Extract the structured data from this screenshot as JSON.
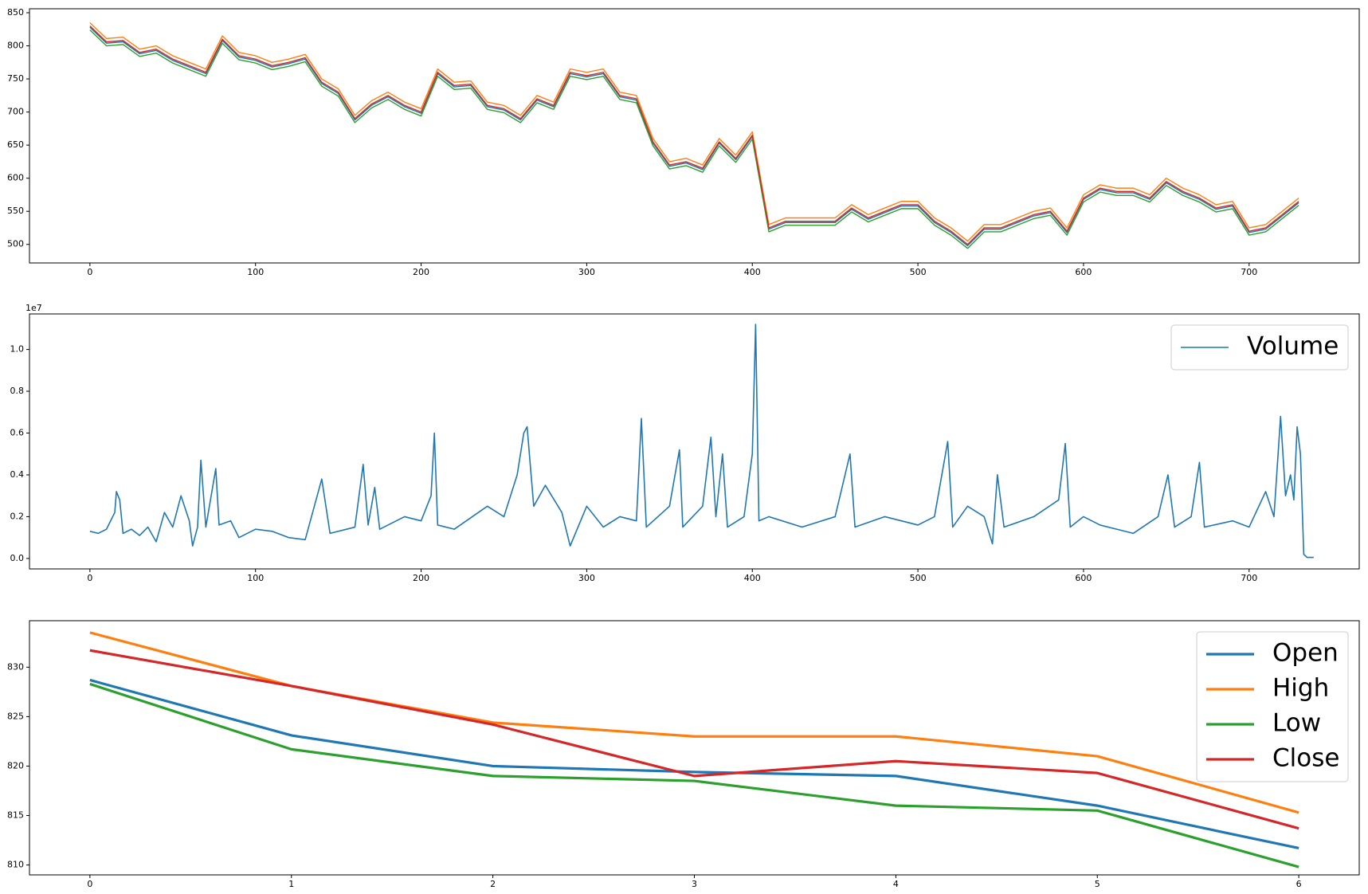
{
  "chart_data": [
    {
      "type": "line",
      "xlim": [
        -36.5,
        766.5
      ],
      "xticks": [
        0,
        100,
        200,
        300,
        400,
        500,
        600,
        700
      ],
      "ylim": [
        472,
        856
      ],
      "yticks": [
        500,
        550,
        600,
        650,
        700,
        750,
        800,
        850
      ],
      "x": [
        0,
        10,
        20,
        30,
        40,
        50,
        60,
        70,
        80,
        90,
        100,
        110,
        120,
        130,
        140,
        150,
        160,
        170,
        180,
        190,
        200,
        210,
        220,
        230,
        240,
        250,
        260,
        270,
        280,
        290,
        300,
        310,
        320,
        330,
        340,
        350,
        360,
        370,
        380,
        390,
        400,
        410,
        420,
        430,
        440,
        450,
        460,
        470,
        480,
        490,
        500,
        510,
        520,
        530,
        540,
        550,
        560,
        570,
        580,
        590,
        600,
        610,
        620,
        630,
        640,
        650,
        660,
        670,
        680,
        690,
        700,
        710,
        720,
        730
      ],
      "series": [
        {
          "color": "#1f77b4",
          "values": [
            828,
            804,
            806,
            788,
            793,
            778,
            768,
            758,
            808,
            783,
            778,
            768,
            773,
            780,
            743,
            728,
            688,
            710,
            723,
            708,
            698,
            758,
            738,
            740,
            708,
            703,
            688,
            718,
            708,
            758,
            753,
            758,
            723,
            718,
            653,
            618,
            623,
            613,
            653,
            628,
            663,
            523,
            533,
            533,
            533,
            533,
            553,
            538,
            548,
            558,
            558,
            533,
            518,
            498,
            523,
            523,
            533,
            543,
            548,
            518,
            568,
            583,
            578,
            578,
            568,
            593,
            578,
            568,
            553,
            558,
            518,
            523,
            543,
            563
          ]
        },
        {
          "color": "#ff7f0e",
          "values": [
            835,
            811,
            813,
            795,
            800,
            785,
            775,
            765,
            815,
            790,
            785,
            775,
            780,
            787,
            750,
            735,
            695,
            717,
            730,
            715,
            705,
            765,
            745,
            747,
            715,
            710,
            695,
            725,
            715,
            765,
            760,
            765,
            730,
            725,
            660,
            625,
            630,
            620,
            660,
            635,
            670,
            530,
            540,
            540,
            540,
            540,
            560,
            545,
            555,
            565,
            565,
            540,
            525,
            505,
            530,
            530,
            540,
            550,
            555,
            525,
            575,
            590,
            585,
            585,
            575,
            600,
            585,
            575,
            560,
            565,
            525,
            530,
            550,
            570
          ]
        },
        {
          "color": "#2ca02c",
          "values": [
            824,
            800,
            802,
            784,
            789,
            774,
            764,
            754,
            804,
            779,
            774,
            764,
            769,
            776,
            739,
            724,
            684,
            706,
            719,
            704,
            694,
            754,
            734,
            736,
            704,
            699,
            684,
            714,
            704,
            754,
            749,
            754,
            719,
            714,
            649,
            614,
            619,
            609,
            649,
            624,
            659,
            519,
            529,
            529,
            529,
            529,
            549,
            534,
            544,
            554,
            554,
            529,
            514,
            494,
            519,
            519,
            529,
            539,
            544,
            514,
            564,
            579,
            574,
            574,
            564,
            589,
            574,
            564,
            549,
            554,
            514,
            519,
            539,
            559
          ]
        },
        {
          "color": "#d62728",
          "values": [
            830,
            806,
            808,
            790,
            795,
            780,
            770,
            760,
            810,
            785,
            780,
            770,
            775,
            782,
            745,
            730,
            690,
            712,
            725,
            710,
            700,
            760,
            740,
            742,
            710,
            705,
            690,
            720,
            710,
            760,
            755,
            760,
            725,
            720,
            655,
            620,
            625,
            615,
            655,
            630,
            665,
            525,
            535,
            535,
            535,
            535,
            555,
            540,
            550,
            560,
            560,
            535,
            520,
            500,
            525,
            525,
            535,
            545,
            550,
            520,
            570,
            585,
            580,
            580,
            570,
            595,
            580,
            570,
            555,
            560,
            520,
            525,
            545,
            565
          ]
        }
      ]
    },
    {
      "type": "line",
      "xlim": [
        -36.5,
        766.5
      ],
      "xticks": [
        0,
        100,
        200,
        300,
        400,
        500,
        600,
        700
      ],
      "ylim": [
        -500000,
        11700000
      ],
      "yticks": [
        {
          "value": 0,
          "label": "0.0"
        },
        {
          "value": 2000000,
          "label": "0.2"
        },
        {
          "value": 4000000,
          "label": "0.4"
        },
        {
          "value": 6000000,
          "label": "0.6"
        },
        {
          "value": 8000000,
          "label": "0.8"
        },
        {
          "value": 10000000,
          "label": "1.0"
        }
      ],
      "y_offset_label": "1e7",
      "legend": "upper right",
      "x": [
        0,
        5,
        10,
        15,
        16,
        18,
        20,
        25,
        30,
        35,
        40,
        45,
        50,
        55,
        60,
        62,
        65,
        67,
        70,
        76,
        78,
        85,
        90,
        100,
        110,
        120,
        130,
        140,
        145,
        160,
        165,
        168,
        172,
        175,
        190,
        200,
        206,
        208,
        210,
        220,
        240,
        250,
        258,
        262,
        264,
        268,
        275,
        285,
        290,
        300,
        310,
        320,
        330,
        333,
        336,
        350,
        356,
        358,
        370,
        375,
        378,
        382,
        385,
        395,
        400,
        402,
        404,
        410,
        430,
        450,
        459,
        462,
        480,
        500,
        510,
        518,
        521,
        530,
        540,
        545,
        548,
        552,
        570,
        585,
        589,
        592,
        600,
        610,
        620,
        630,
        645,
        651,
        655,
        665,
        670,
        673,
        690,
        700,
        710,
        715,
        719,
        722,
        725,
        727,
        729,
        731,
        733,
        735,
        739
      ],
      "series": [
        {
          "name": "Volume",
          "color": "#1f77b4",
          "values": [
            1300000,
            1200000,
            1400000,
            2200000,
            3200000,
            2800000,
            1200000,
            1400000,
            1100000,
            1500000,
            800000,
            2200000,
            1500000,
            3000000,
            1800000,
            600000,
            1500000,
            4700000,
            1500000,
            4300000,
            1600000,
            1800000,
            1000000,
            1400000,
            1300000,
            1000000,
            900000,
            3800000,
            1200000,
            1500000,
            4500000,
            1600000,
            3400000,
            1400000,
            2000000,
            1800000,
            3000000,
            6000000,
            1600000,
            1400000,
            2500000,
            2000000,
            4000000,
            6000000,
            6300000,
            2500000,
            3500000,
            2200000,
            600000,
            2500000,
            1500000,
            2000000,
            1800000,
            6700000,
            1500000,
            2500000,
            5200000,
            1500000,
            2500000,
            5800000,
            2000000,
            5000000,
            1500000,
            2000000,
            5000000,
            11200000,
            1800000,
            2000000,
            1500000,
            2000000,
            5000000,
            1500000,
            2000000,
            1600000,
            2000000,
            5600000,
            1500000,
            2500000,
            2000000,
            700000,
            4000000,
            1500000,
            2000000,
            2800000,
            5500000,
            1500000,
            2000000,
            1600000,
            1400000,
            1200000,
            2000000,
            4000000,
            1500000,
            2000000,
            4600000,
            1500000,
            1800000,
            1500000,
            3200000,
            2000000,
            6800000,
            3000000,
            4000000,
            2800000,
            6300000,
            5000000,
            200000,
            50000,
            50000
          ]
        }
      ]
    },
    {
      "type": "line",
      "xlim": [
        -0.3,
        6.3
      ],
      "xticks": [
        0,
        1,
        2,
        3,
        4,
        5,
        6
      ],
      "ylim": [
        809,
        834.7
      ],
      "yticks": [
        810,
        815,
        820,
        825,
        830
      ],
      "legend": "upper right",
      "x": [
        0,
        1,
        2,
        3,
        4,
        5,
        6
      ],
      "series": [
        {
          "name": "Open",
          "color": "#1f77b4",
          "values": [
            828.7,
            823.1,
            820.0,
            819.4,
            819.0,
            816.0,
            811.7
          ]
        },
        {
          "name": "High",
          "color": "#ff7f0e",
          "values": [
            833.5,
            828.1,
            824.4,
            823.0,
            823.0,
            821.0,
            815.3
          ]
        },
        {
          "name": "Low",
          "color": "#2ca02c",
          "values": [
            828.3,
            821.7,
            819.0,
            818.5,
            816.0,
            815.5,
            809.8
          ]
        },
        {
          "name": "Close",
          "color": "#d62728",
          "values": [
            831.7,
            828.1,
            824.2,
            819.0,
            820.5,
            819.3,
            813.7
          ]
        }
      ]
    }
  ]
}
